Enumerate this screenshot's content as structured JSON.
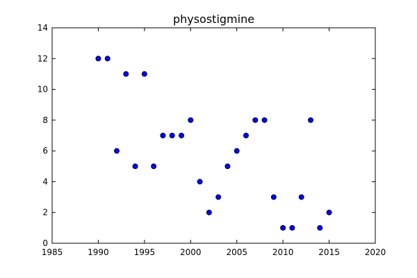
{
  "chart_data": {
    "type": "scatter",
    "title": "physostigmine",
    "xlabel": "",
    "ylabel": "",
    "xlim": [
      1985,
      2020
    ],
    "ylim": [
      0,
      14
    ],
    "x_ticks": [
      1985,
      1990,
      1995,
      2000,
      2005,
      2010,
      2015,
      2020
    ],
    "y_ticks": [
      0,
      2,
      4,
      6,
      8,
      10,
      12,
      14
    ],
    "grid": false,
    "marker_color": "#0000ff",
    "marker_edge_color": "#000000",
    "points": [
      {
        "x": 1990,
        "y": 12
      },
      {
        "x": 1991,
        "y": 12
      },
      {
        "x": 1992,
        "y": 6
      },
      {
        "x": 1993,
        "y": 11
      },
      {
        "x": 1994,
        "y": 5
      },
      {
        "x": 1995,
        "y": 11
      },
      {
        "x": 1996,
        "y": 5
      },
      {
        "x": 1997,
        "y": 7
      },
      {
        "x": 1998,
        "y": 7
      },
      {
        "x": 1999,
        "y": 7
      },
      {
        "x": 2000,
        "y": 8
      },
      {
        "x": 2001,
        "y": 4
      },
      {
        "x": 2002,
        "y": 2
      },
      {
        "x": 2003,
        "y": 3
      },
      {
        "x": 2004,
        "y": 5
      },
      {
        "x": 2005,
        "y": 6
      },
      {
        "x": 2006,
        "y": 7
      },
      {
        "x": 2007,
        "y": 8
      },
      {
        "x": 2008,
        "y": 8
      },
      {
        "x": 2009,
        "y": 3
      },
      {
        "x": 2010,
        "y": 1
      },
      {
        "x": 2011,
        "y": 1
      },
      {
        "x": 2012,
        "y": 3
      },
      {
        "x": 2013,
        "y": 8
      },
      {
        "x": 2014,
        "y": 1
      },
      {
        "x": 2015,
        "y": 2
      }
    ]
  }
}
